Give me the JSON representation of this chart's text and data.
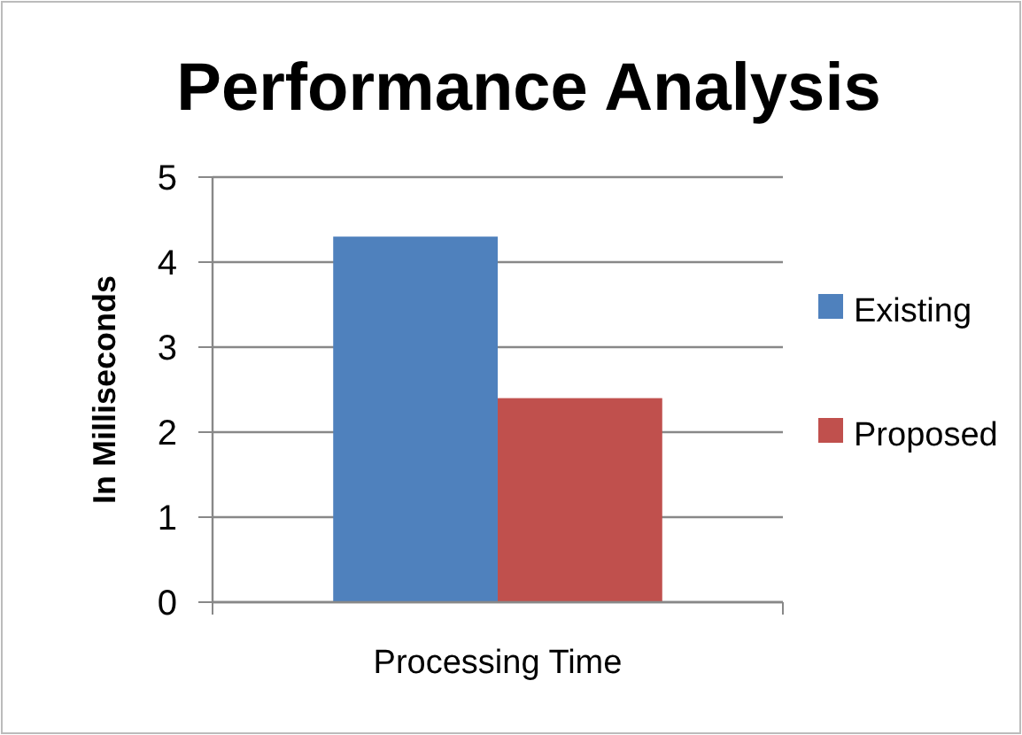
{
  "chart_data": {
    "type": "bar",
    "title": "Performance Analysis",
    "ylabel": "In Milliseconds",
    "categories": [
      "Processing Time"
    ],
    "series": [
      {
        "name": "Existing",
        "color": "#4f81bd",
        "values": [
          4.3
        ]
      },
      {
        "name": "Proposed",
        "color": "#c0504d",
        "values": [
          2.4
        ]
      }
    ],
    "ylim": [
      0,
      5
    ],
    "yticks": [
      0,
      1,
      2,
      3,
      4,
      5
    ],
    "grid": "y",
    "legend": "right"
  }
}
